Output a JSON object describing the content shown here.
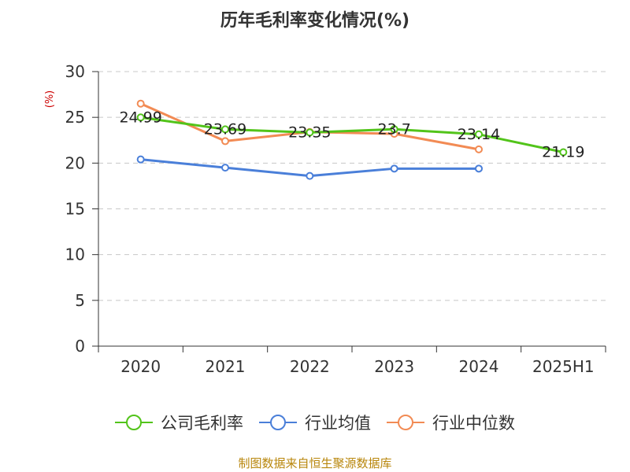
{
  "chart_data": {
    "type": "line",
    "title": "历年毛利率变化情况(%)",
    "ylabel": "(%)",
    "ylim": [
      0,
      30
    ],
    "yticks": [
      0,
      5,
      10,
      15,
      20,
      25,
      30
    ],
    "grid": true,
    "categories": [
      "2020",
      "2021",
      "2022",
      "2023",
      "2024",
      "2025H1"
    ],
    "series": [
      {
        "name": "公司毛利率",
        "color": "#52c41a",
        "values": [
          24.99,
          23.69,
          23.35,
          23.7,
          23.14,
          21.19
        ],
        "labels": [
          "24.99",
          "23.69",
          "23.35",
          "23.7",
          "23.14",
          "21.19"
        ]
      },
      {
        "name": "行业均值",
        "color": "#4a7fd9",
        "values": [
          20.4,
          19.5,
          18.6,
          19.4,
          19.4,
          null
        ]
      },
      {
        "name": "行业中位数",
        "color": "#f28b54",
        "values": [
          26.5,
          22.4,
          23.4,
          23.2,
          21.5,
          null
        ]
      }
    ],
    "legend_position": "bottom",
    "ylabel_color": "#cc0000"
  },
  "source": {
    "text": "制图数据来自恒生聚源数据库",
    "color": "#b8860b"
  }
}
